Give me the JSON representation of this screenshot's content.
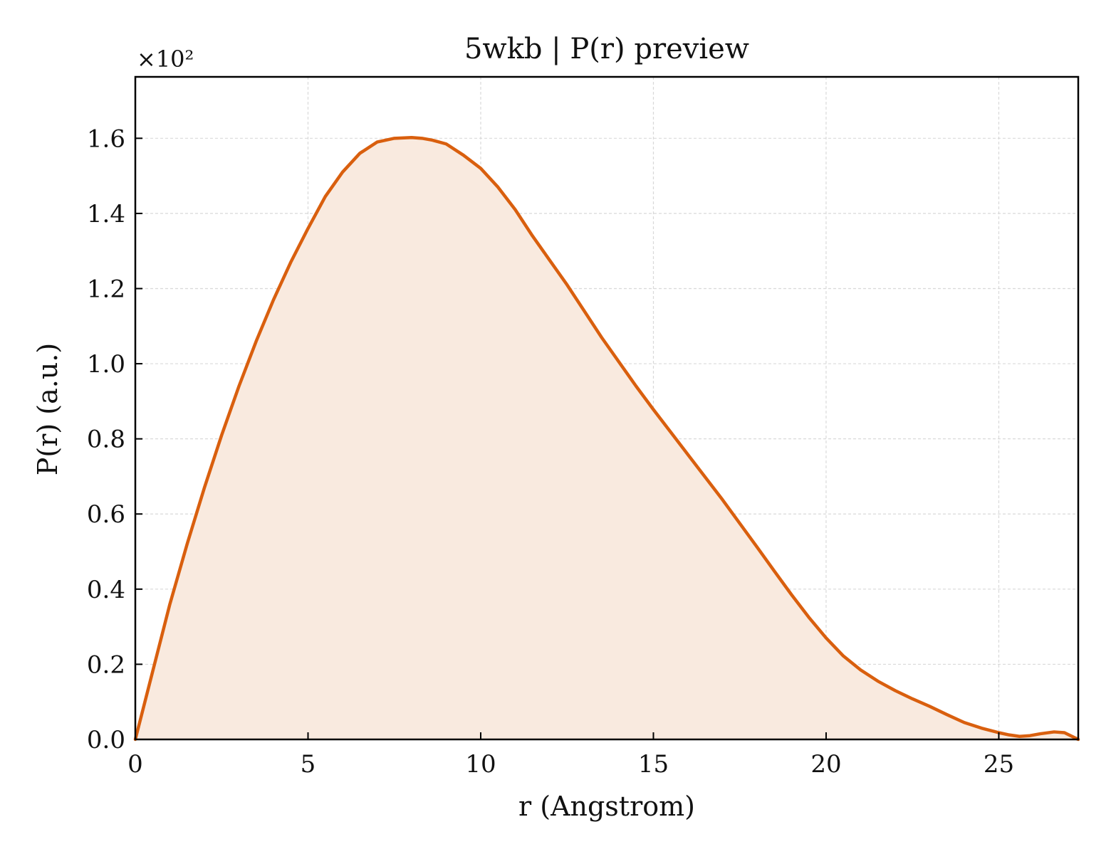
{
  "chart_data": {
    "type": "area",
    "title": "5wkb | P(r) preview",
    "xlabel": "r (Angstrom)",
    "ylabel": "P(r) (a.u.)",
    "y_scale_label": "×10²",
    "xlim": [
      0,
      27.3
    ],
    "ylim": [
      0,
      1.7635
    ],
    "x_ticks": [
      0,
      5,
      10,
      15,
      20,
      25
    ],
    "x_tick_labels": [
      "0",
      "5",
      "10",
      "15",
      "20",
      "25"
    ],
    "y_ticks": [
      0,
      0.2,
      0.4,
      0.6,
      0.8,
      1.0,
      1.2,
      1.4,
      1.6
    ],
    "y_tick_labels": [
      "0.0",
      "0.2",
      "0.4",
      "0.6",
      "0.8",
      "1.0",
      "1.2",
      "1.4",
      "1.6"
    ],
    "grid": true,
    "colors": {
      "line": "#d95f0e",
      "fill": "#f9eadf",
      "grid": "#d9d9d9",
      "axis": "#000000"
    },
    "series": [
      {
        "x": [
          0,
          0.5,
          1.0,
          1.5,
          2.0,
          2.5,
          3.0,
          3.5,
          4.0,
          4.5,
          5.0,
          5.5,
          6.0,
          6.5,
          7.0,
          7.5,
          8.0,
          8.3,
          8.6,
          9.0,
          9.5,
          10.0,
          10.5,
          11.0,
          11.5,
          12.0,
          12.5,
          13.0,
          13.5,
          14.0,
          14.5,
          15.0,
          15.5,
          16.0,
          16.5,
          17.0,
          17.5,
          18.0,
          18.5,
          19.0,
          19.5,
          20.0,
          20.5,
          21.0,
          21.5,
          22.0,
          22.5,
          23.0,
          23.5,
          24.0,
          24.5,
          25.0,
          25.3,
          25.6,
          25.9,
          26.2,
          26.6,
          26.9,
          27.3
        ],
        "y": [
          0.0,
          0.18,
          0.36,
          0.52,
          0.67,
          0.81,
          0.94,
          1.06,
          1.17,
          1.27,
          1.36,
          1.445,
          1.51,
          1.56,
          1.59,
          1.6,
          1.602,
          1.6,
          1.595,
          1.585,
          1.555,
          1.52,
          1.47,
          1.41,
          1.34,
          1.275,
          1.21,
          1.14,
          1.07,
          1.005,
          0.94,
          0.878,
          0.818,
          0.758,
          0.698,
          0.638,
          0.575,
          0.512,
          0.448,
          0.385,
          0.325,
          0.27,
          0.222,
          0.185,
          0.155,
          0.13,
          0.108,
          0.088,
          0.066,
          0.045,
          0.03,
          0.018,
          0.012,
          0.008,
          0.01,
          0.015,
          0.02,
          0.018,
          0.0
        ]
      }
    ]
  }
}
